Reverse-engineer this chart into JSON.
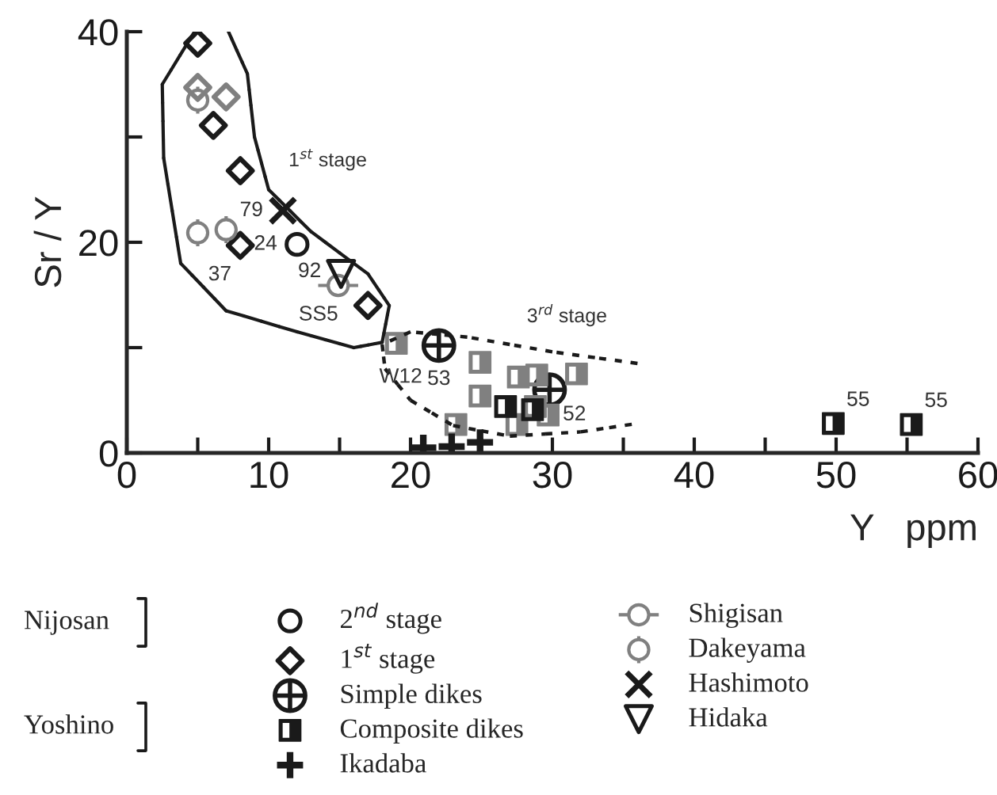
{
  "chart_data": {
    "type": "scatter",
    "ylabel": "Sr / Y",
    "xlabel": "Y   ppm",
    "xlim": [
      0,
      60
    ],
    "ylim": [
      0,
      40
    ],
    "xticks": [
      0,
      {
        "value": 5,
        "label": null
      },
      10,
      {
        "value": 15,
        "label": null
      },
      20,
      {
        "value": 25,
        "label": null
      },
      30,
      {
        "value": 35,
        "label": null
      },
      40,
      {
        "value": 45,
        "label": null
      },
      50,
      {
        "value": 55,
        "label": null
      },
      60
    ],
    "yticks": [
      0,
      {
        "value": 10,
        "label": null
      },
      20,
      {
        "value": 30,
        "label": null
      },
      40
    ],
    "grid": false,
    "legend": "bottom",
    "series": [
      {
        "name": "2$^{nd}$ stage",
        "color": "#1a1a1a",
        "x": [
          12.0
        ],
        "values": [
          19.8
        ]
      },
      {
        "name": "1$^{st}$ stage",
        "color": "#1a1a1a",
        "colors": [
          "#1a1a1a",
          "#1a1a1a",
          "#1a1a1a",
          "#1a1a1a",
          "#1a1a1a",
          "#808080",
          "#808080"
        ],
        "x": [
          5.0,
          6.1,
          8.0,
          8.0,
          17.0,
          5.0,
          7.0
        ],
        "values": [
          38.9,
          31.1,
          26.8,
          19.7,
          14.0,
          34.7,
          33.8
        ]
      },
      {
        "name": "Simple dikes",
        "color": "#1a1a1a",
        "x": [
          22.0,
          29.8
        ],
        "values": [
          10.2,
          6.0
        ]
      },
      {
        "name": "Composite dikes",
        "color": "#1a1a1a",
        "colors": [
          "#808080",
          "#808080",
          "#808080",
          "#808080",
          "#808080",
          "#808080",
          "#808080",
          "#808080",
          "#808080",
          "#808080",
          "#1a1a1a",
          "#1a1a1a",
          "#1a1a1a",
          "#1a1a1a"
        ],
        "x": [
          19.0,
          24.9,
          24.9,
          27.6,
          28.9,
          31.7,
          23.2,
          27.5,
          28.8,
          29.7,
          26.7,
          28.6,
          49.8,
          55.3
        ],
        "values": [
          10.4,
          8.6,
          5.4,
          7.2,
          7.4,
          7.5,
          2.7,
          2.7,
          4.4,
          3.6,
          4.4,
          4.1,
          2.8,
          2.7
        ]
      },
      {
        "name": "Ikadaba",
        "color": "#1a1a1a",
        "x": [
          20.9,
          22.9,
          24.9
        ],
        "values": [
          0.5,
          0.6,
          1.0
        ]
      },
      {
        "name": "Shigisan",
        "color": "#808080",
        "x": [
          14.9
        ],
        "values": [
          15.9
        ]
      },
      {
        "name": "Dakeyama",
        "color": "#808080",
        "x": [
          5.0,
          5.0,
          7.0
        ],
        "values": [
          33.5,
          20.9,
          21.2
        ]
      },
      {
        "name": "Hashimoto",
        "color": "#1a1a1a",
        "x": [
          11.0
        ],
        "values": [
          23.0
        ]
      },
      {
        "name": "Hidaka",
        "color": "#1a1a1a",
        "x": [
          15.1
        ],
        "values": [
          17.0
        ]
      }
    ],
    "annotations": [
      "Nijosan",
      "Yoshino",
      "1$^{st}$ stage",
      "3$^{rd}$ stage",
      {
        "text": "79",
        "x": 11.0,
        "y": 23.0
      },
      {
        "text": "24",
        "x": 12.0,
        "y": 19.8
      },
      {
        "text": "37",
        "x": 8.0,
        "y": 19.7
      },
      {
        "text": "92",
        "x": 15.1,
        "y": 17.0
      },
      {
        "text": "SS5",
        "x": 14.9,
        "y": 15.9
      },
      {
        "text": "W12",
        "x": 19.0,
        "y": 10.4
      },
      {
        "text": "53",
        "x": 22.0,
        "y": 10.2
      },
      {
        "text": "52",
        "x": 29.8,
        "y": 6.0
      },
      {
        "text": "55",
        "x": 49.8,
        "y": 2.8
      },
      {
        "text": "55",
        "x": 55.3,
        "y": 2.7
      }
    ]
  }
}
